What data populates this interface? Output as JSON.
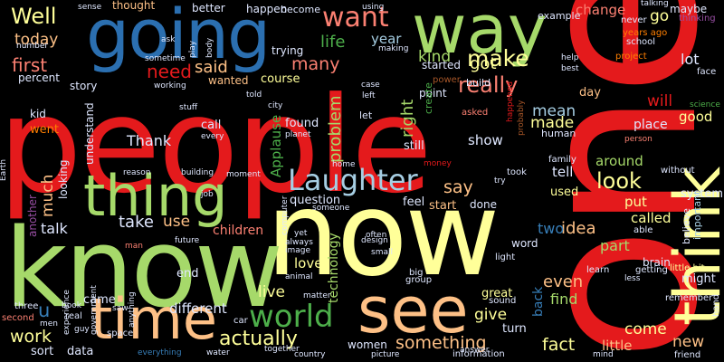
{
  "palette": {
    "red": "#e41a1c",
    "blue": "#377eb8",
    "dark_blue": "#2b6fb0",
    "light_green": "#a6d96a",
    "green": "#4daf4a",
    "yellow": "#ffff99",
    "peach": "#fdc086",
    "orange": "#ff7f00",
    "brown": "#a65628",
    "pink": "#f781bf",
    "purple": "#984ea3",
    "lavender": "#beaed4",
    "grey": "#999999",
    "teal": "#66c2a5",
    "salmon": "#fb8072"
  },
  "words": {
    "people": "people",
    "one": "one",
    "now": "now",
    "know": "know",
    "going": "going",
    "way": "way",
    "think": "think",
    "thing": "thing",
    "time": "time",
    "see": "see",
    "laughter": "Laughter",
    "world": "world",
    "want": "want",
    "well": "Well",
    "make": "make",
    "really": "really",
    "look": "look",
    "actually": "actually",
    "something": "something",
    "need": "need",
    "said": "said",
    "life": "life",
    "many": "many",
    "kind": "kind",
    "got": "got",
    "year": "year",
    "today": "today",
    "first": "first",
    "work": "work",
    "thank": "Thank",
    "much": "much",
    "problem": "problem",
    "right": "right",
    "say": "say",
    "mean": "mean",
    "made": "made",
    "will": "will",
    "lot": "lot",
    "go": "go",
    "change": "change",
    "day": "day",
    "good": "good",
    "place": "place",
    "show": "show",
    "around": "around",
    "tell": "tell",
    "put": "put",
    "idea": "idea",
    "two": "two",
    "called": "called",
    "part": "part",
    "even": "even",
    "back": "back",
    "find": "find",
    "come": "come",
    "little": "little",
    "fact": "fact",
    "new": "new",
    "give": "give",
    "live": "live",
    "love": "love",
    "take": "take",
    "use": "use",
    "talk": "talk",
    "children": "children",
    "different": "different",
    "came": "came",
    "end": "end",
    "u": "u",
    "applause": "Applause",
    "technology": "technology",
    "story": "story",
    "percent": "percent",
    "kid": "kid",
    "went": "went",
    "understand": "understand",
    "looking": "looking",
    "another": "another",
    "call": "call",
    "found": "found",
    "question": "question",
    "feel": "feel",
    "start": "start",
    "done": "done",
    "word": "word",
    "women": "women",
    "great": "great",
    "turn": "turn",
    "information": "information",
    "sort": "sort",
    "data": "data",
    "course": "course",
    "wanted": "wanted",
    "better": "better",
    "thought": "thought",
    "happen": "happen",
    "become": "become",
    "trying": "trying",
    "started": "started",
    "point": "point",
    "example": "example",
    "maybe": "maybe",
    "thinking": "thinking",
    "years_ago": "years ago",
    "school": "school",
    "never": "never",
    "project": "project",
    "build": "build",
    "power": "power",
    "human": "human",
    "still": "still",
    "create": "create",
    "asked": "asked",
    "happened": "happened",
    "probably": "probably",
    "family": "family",
    "system": "system",
    "used": "used",
    "took": "took",
    "believe": "believe",
    "important": "important",
    "without": "without",
    "science": "science",
    "face": "face",
    "able": "able",
    "brain": "brain",
    "getting": "getting",
    "learn": "learn",
    "less": "less",
    "might": "might",
    "remember": "remember",
    "little_bit": "little bit",
    "hand": "hand",
    "friend": "friend",
    "mind": "mind",
    "answer": "answer",
    "picture": "picture",
    "sound": "sound",
    "light": "light",
    "group": "group",
    "big": "big",
    "country": "country",
    "together": "together",
    "water": "water",
    "everything": "everything",
    "space": "space",
    "guy": "guy",
    "real": "real",
    "men": "men",
    "second": "second",
    "three": "three",
    "book": "book",
    "experience": "experience",
    "saw": "saw",
    "government": "government",
    "anything": "anything",
    "car": "car",
    "matter": "matter",
    "image": "image",
    "animal": "animal",
    "always": "always",
    "yet": "yet",
    "design": "design",
    "often": "often",
    "small": "small",
    "someone": "someone",
    "computer": "computer",
    "future": "future",
    "man": "man",
    "job": "job",
    "reason": "reason",
    "building": "building",
    "moment": "moment",
    "home": "home",
    "money": "money",
    "try": "try",
    "earth": "Earth",
    "every": "every",
    "planet": "planet",
    "city": "city",
    "told": "told",
    "stuff": "stuff",
    "working": "working",
    "sometime": "sometime",
    "ask": "ask",
    "play": "play",
    "body": "body",
    "making": "making",
    "let": "let",
    "case": "case",
    "left": "left",
    "help": "help",
    "best": "best",
    "person": "person",
    "number": "number",
    "sense": "sense",
    "using": "using",
    "talking": "talking"
  }
}
